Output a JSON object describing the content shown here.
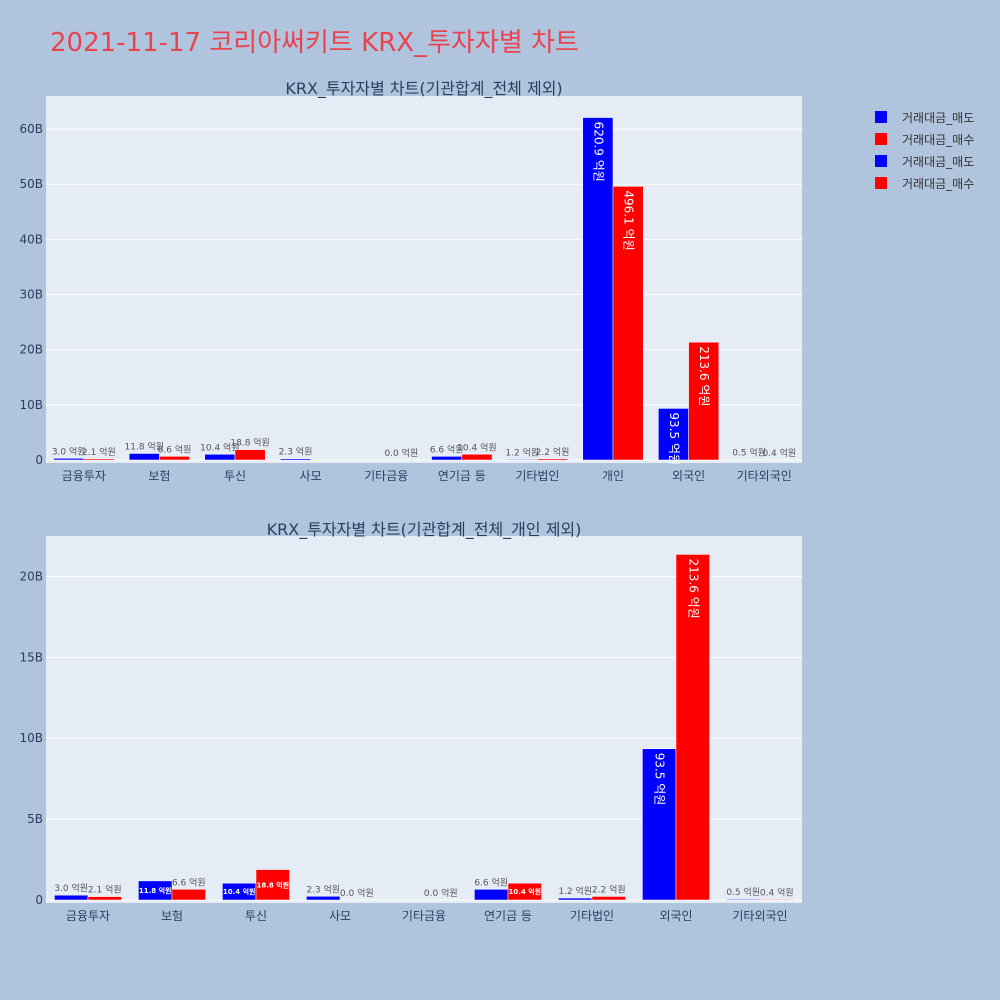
{
  "title": "2021-11-17 코리아써키트 KRX_투자자별 차트",
  "colors": {
    "sell": "#0000ff",
    "buy": "#ff0000",
    "plot_bg": "#e5ecf6",
    "page_bg": "#b0c4de",
    "title": "#e8444f"
  },
  "legend": [
    {
      "label": "거래대금_매도",
      "color": "#0000ff"
    },
    {
      "label": "거래대금_매수",
      "color": "#ff0000"
    },
    {
      "label": "거래대금_매도",
      "color": "#0000ff"
    },
    {
      "label": "거래대금_매수",
      "color": "#ff0000"
    }
  ],
  "chart_data": [
    {
      "type": "bar",
      "title": "KRX_투자자별 차트(기관합계_전체 제외)",
      "categories": [
        "금융투자",
        "보험",
        "투신",
        "사모",
        "기타금융",
        "연기금 등",
        "기타법인",
        "개인",
        "외국인",
        "기타외국인"
      ],
      "ylim": [
        0,
        66
      ],
      "yticks": [
        0,
        10,
        20,
        30,
        40,
        50,
        60
      ],
      "ytick_labels": [
        "0",
        "10B",
        "20B",
        "30B",
        "40B",
        "50B",
        "60B"
      ],
      "series": [
        {
          "name": "거래대금_매도",
          "values": [
            0.3,
            1.18,
            1.04,
            0.23,
            null,
            0.66,
            0.12,
            62.09,
            9.35,
            0.05
          ],
          "labels": [
            "3.0 억원",
            "11.8 억원",
            "10.4 억원",
            "2.3 억원",
            "",
            "6.6 억원",
            "1.2 억원",
            "620.9 억원",
            "93.5 억원",
            "0.5 억원"
          ]
        },
        {
          "name": "거래대금_매수",
          "values": [
            0.21,
            0.66,
            1.88,
            null,
            0.0,
            1.04,
            0.22,
            49.61,
            21.36,
            0.04
          ],
          "labels": [
            "2.1 억원",
            "6.6 억원",
            "18.8 억원",
            "",
            "0.0 억원",
            "10.4 억원",
            "2.2 억원",
            "496.1 억원",
            "213.6 억원",
            "0.4 억원"
          ]
        }
      ],
      "grid": true
    },
    {
      "type": "bar",
      "title": "KRX_투자자별 차트(기관합계_전체_개인 제외)",
      "categories": [
        "금융투자",
        "보험",
        "투신",
        "사모",
        "기타금융",
        "연기금 등",
        "기타법인",
        "외국인",
        "기타외국인"
      ],
      "ylim": [
        0,
        22.5
      ],
      "yticks": [
        0,
        5,
        10,
        15,
        20
      ],
      "ytick_labels": [
        "0",
        "5B",
        "10B",
        "15B",
        "20B"
      ],
      "series": [
        {
          "name": "거래대금_매도",
          "values": [
            0.3,
            1.18,
            1.04,
            0.23,
            null,
            0.66,
            0.12,
            9.35,
            0.05
          ],
          "labels": [
            "3.0 억원",
            "11.8 억원",
            "10.4 억원",
            "2.3 억원",
            "",
            "6.6 억원",
            "1.2 억원",
            "93.5 억원",
            "0.5 억원"
          ]
        },
        {
          "name": "거래대금_매수",
          "values": [
            0.21,
            0.66,
            1.88,
            0.0,
            0.0,
            1.04,
            0.22,
            21.36,
            0.04
          ],
          "labels": [
            "2.1 억원",
            "6.6 억원",
            "18.8 억원",
            "0.0 억원",
            "0.0 억원",
            "10.4 억원",
            "2.2 억원",
            "213.6 억원",
            "0.4 억원"
          ]
        }
      ],
      "grid": true
    }
  ]
}
